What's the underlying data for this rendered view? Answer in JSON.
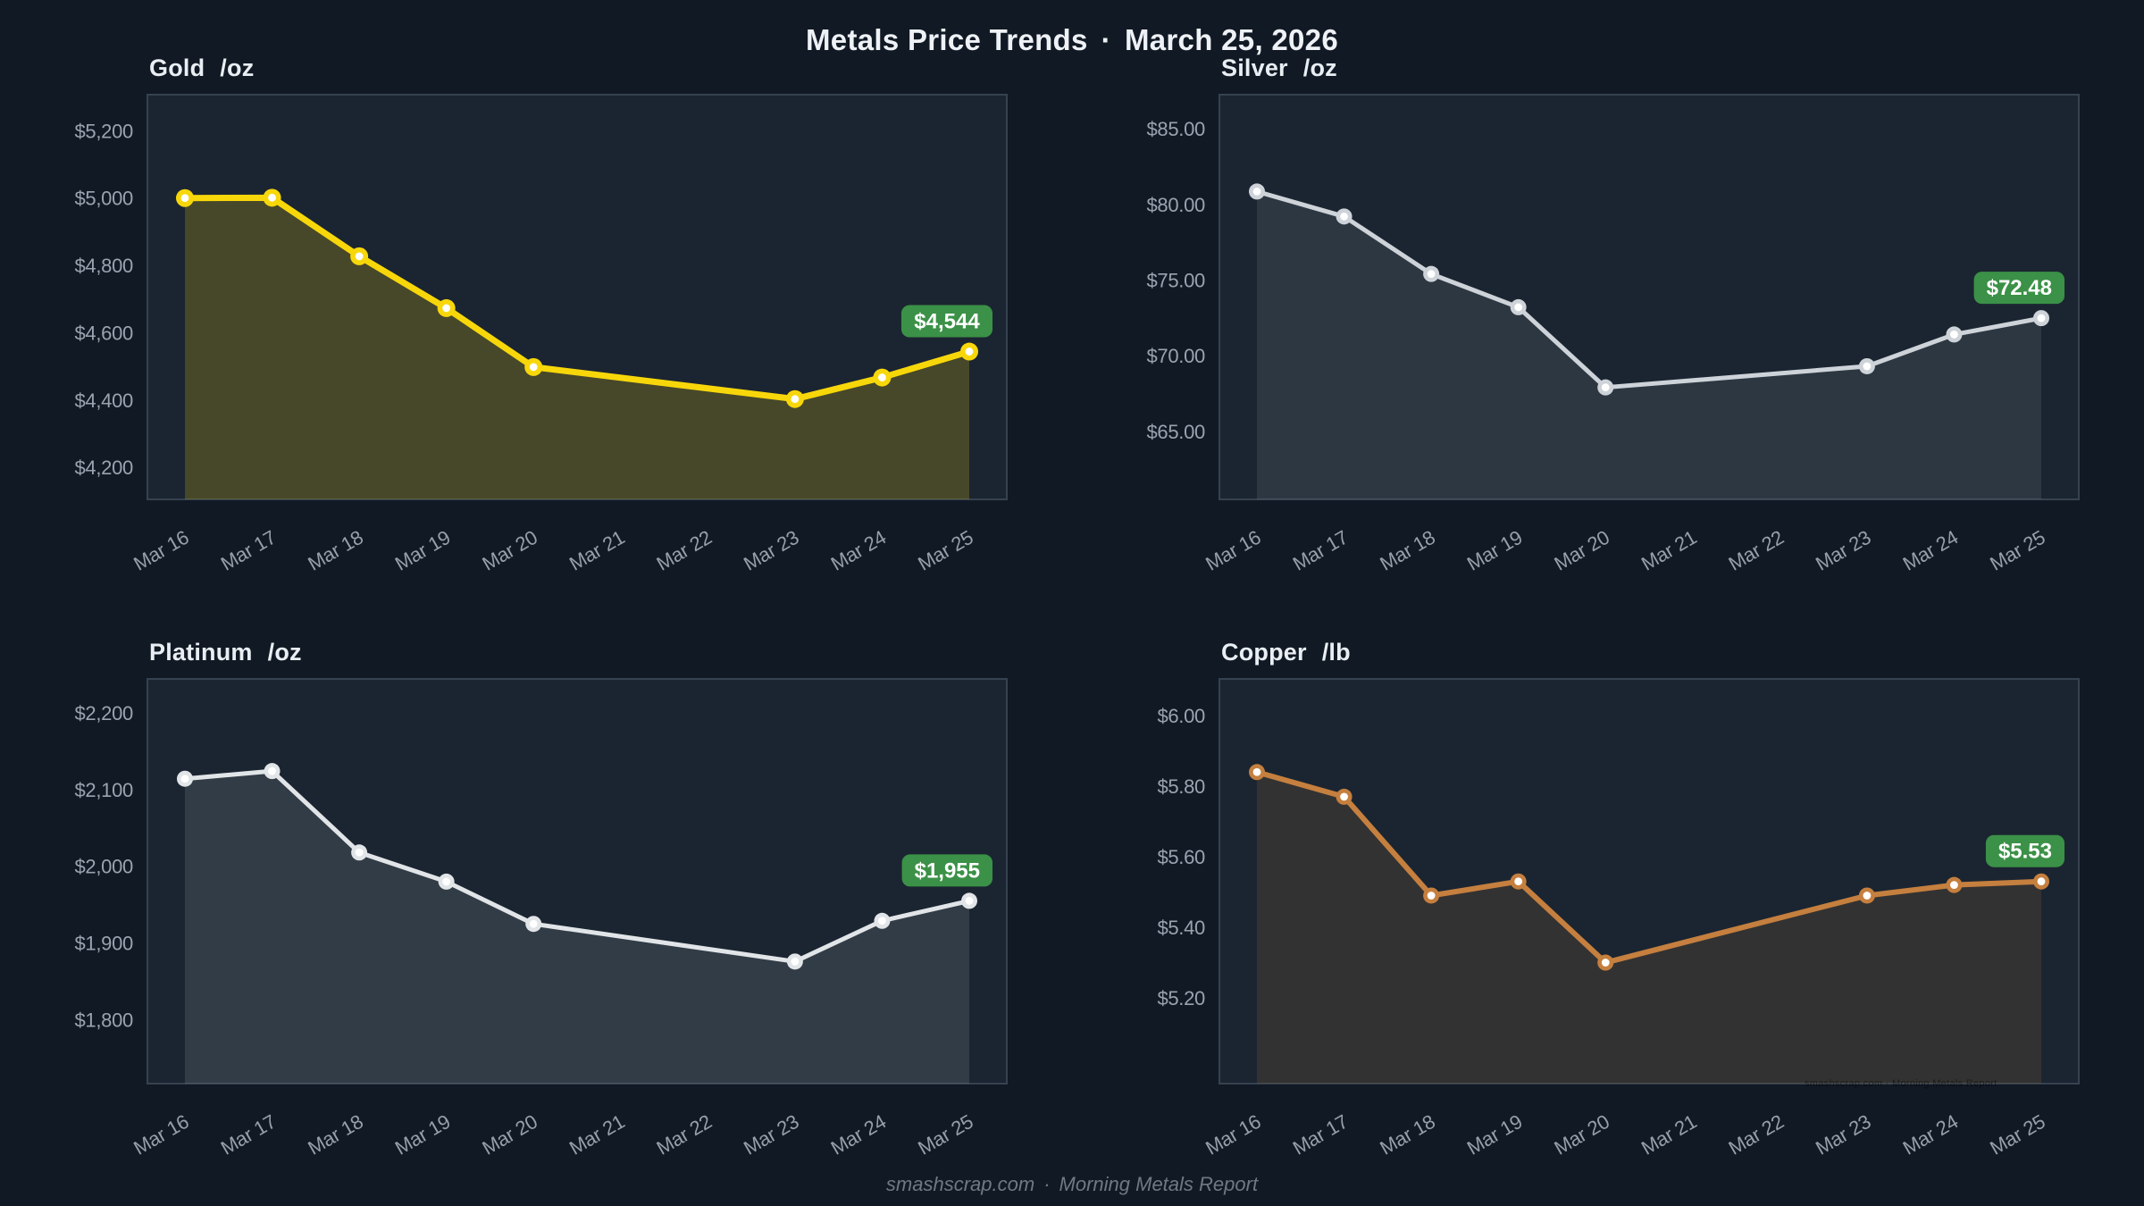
{
  "header": {
    "title": "Metals Price Trends",
    "separator": "·",
    "date": "March 25, 2026"
  },
  "chart_data": [
    {
      "id": "gold",
      "type": "line",
      "title": "Gold",
      "unit": "/oz",
      "categories": [
        "Mar 16",
        "Mar 17",
        "Mar 18",
        "Mar 19",
        "Mar 20",
        "Mar 21",
        "Mar 22",
        "Mar 23",
        "Mar 24",
        "Mar 25"
      ],
      "values": [
        5000,
        5001,
        4827,
        4673,
        4498,
        null,
        null,
        4403,
        4467,
        4544
      ],
      "y_ticks": {
        "values": [
          5200,
          5000,
          4800,
          4600,
          4400,
          4200
        ],
        "labels": [
          "$5,200",
          "$5,000",
          "$4,800",
          "$4,600",
          "$4,400",
          "$4,200"
        ]
      },
      "ylim": [
        4105,
        5307
      ],
      "last_value_label": "$4,544",
      "line_color": "#f8d70a",
      "fill_opacity": 0.2,
      "line_width": 7,
      "dot_radius": 10,
      "note": "no markers on weekend days Mar 21-22; line interpolates"
    },
    {
      "id": "silver",
      "type": "line",
      "title": "Silver",
      "unit": "/oz",
      "categories": [
        "Mar 16",
        "Mar 17",
        "Mar 18",
        "Mar 19",
        "Mar 20",
        "Mar 21",
        "Mar 22",
        "Mar 23",
        "Mar 24",
        "Mar 25"
      ],
      "values": [
        80.85,
        79.2,
        75.4,
        73.2,
        67.9,
        null,
        null,
        69.3,
        71.4,
        72.48
      ],
      "y_ticks": {
        "values": [
          85,
          80,
          75,
          70,
          65
        ],
        "labels": [
          "$85.00",
          "$80.00",
          "$75.00",
          "$70.00",
          "$65.00"
        ]
      },
      "ylim": [
        60.5,
        87.25
      ],
      "last_value_label": "$72.48",
      "line_color": "#cdd3d8",
      "fill_opacity": 0.1,
      "line_width": 5,
      "dot_radius": 9,
      "note": "no markers on weekend days Mar 21-22; line interpolates"
    },
    {
      "id": "platinum",
      "type": "line",
      "title": "Platinum",
      "unit": "/oz",
      "categories": [
        "Mar 16",
        "Mar 17",
        "Mar 18",
        "Mar 19",
        "Mar 20",
        "Mar 21",
        "Mar 22",
        "Mar 23",
        "Mar 24",
        "Mar 25"
      ],
      "values": [
        2114,
        2124,
        2018,
        1980,
        1925,
        null,
        null,
        1876,
        1929,
        1955
      ],
      "y_ticks": {
        "values": [
          2200,
          2100,
          2000,
          1900,
          1800
        ],
        "labels": [
          "$2,200",
          "$2,100",
          "$2,000",
          "$1,900",
          "$1,800"
        ]
      },
      "ylim": [
        1717,
        2244
      ],
      "last_value_label": "$1,955",
      "line_color": "#e1e5e8",
      "fill_opacity": 0.12,
      "line_width": 5,
      "dot_radius": 9,
      "note": "no markers on weekend days Mar 21-22; line interpolates"
    },
    {
      "id": "copper",
      "type": "line",
      "title": "Copper",
      "unit": "/lb",
      "categories": [
        "Mar 16",
        "Mar 17",
        "Mar 18",
        "Mar 19",
        "Mar 20",
        "Mar 21",
        "Mar 22",
        "Mar 23",
        "Mar 24",
        "Mar 25"
      ],
      "values": [
        5.84,
        5.77,
        5.49,
        5.53,
        5.3,
        null,
        null,
        5.49,
        5.52,
        5.53
      ],
      "y_ticks": {
        "values": [
          6.0,
          5.8,
          5.6,
          5.4,
          5.2
        ],
        "labels": [
          "$6.00",
          "$5.80",
          "$5.60",
          "$5.40",
          "$5.20"
        ]
      },
      "ylim": [
        4.957,
        6.104
      ],
      "last_value_label": "$5.53",
      "line_color": "#c57f3e",
      "fill_opacity": 0.15,
      "line_width": 6,
      "dot_radius": 9,
      "note": "no markers on weekend days Mar 21-22; line interpolates"
    }
  ],
  "footer": {
    "site": "smashscrap.com",
    "separator": "·",
    "report": "Morning Metals Report"
  },
  "watermark": "smashscrap.com · Morning Metals Report",
  "colors": {
    "page_bg": "#111924",
    "plot_bg": "#1b2531",
    "plot_border": "#36424f",
    "tick_label": "#9aa4b0",
    "date_label": "#96a0ab",
    "title_text": "#e9eef3",
    "badge_bg": "#3b9147",
    "badge_text": "#ffffff",
    "footer_text": "#6f7984"
  }
}
